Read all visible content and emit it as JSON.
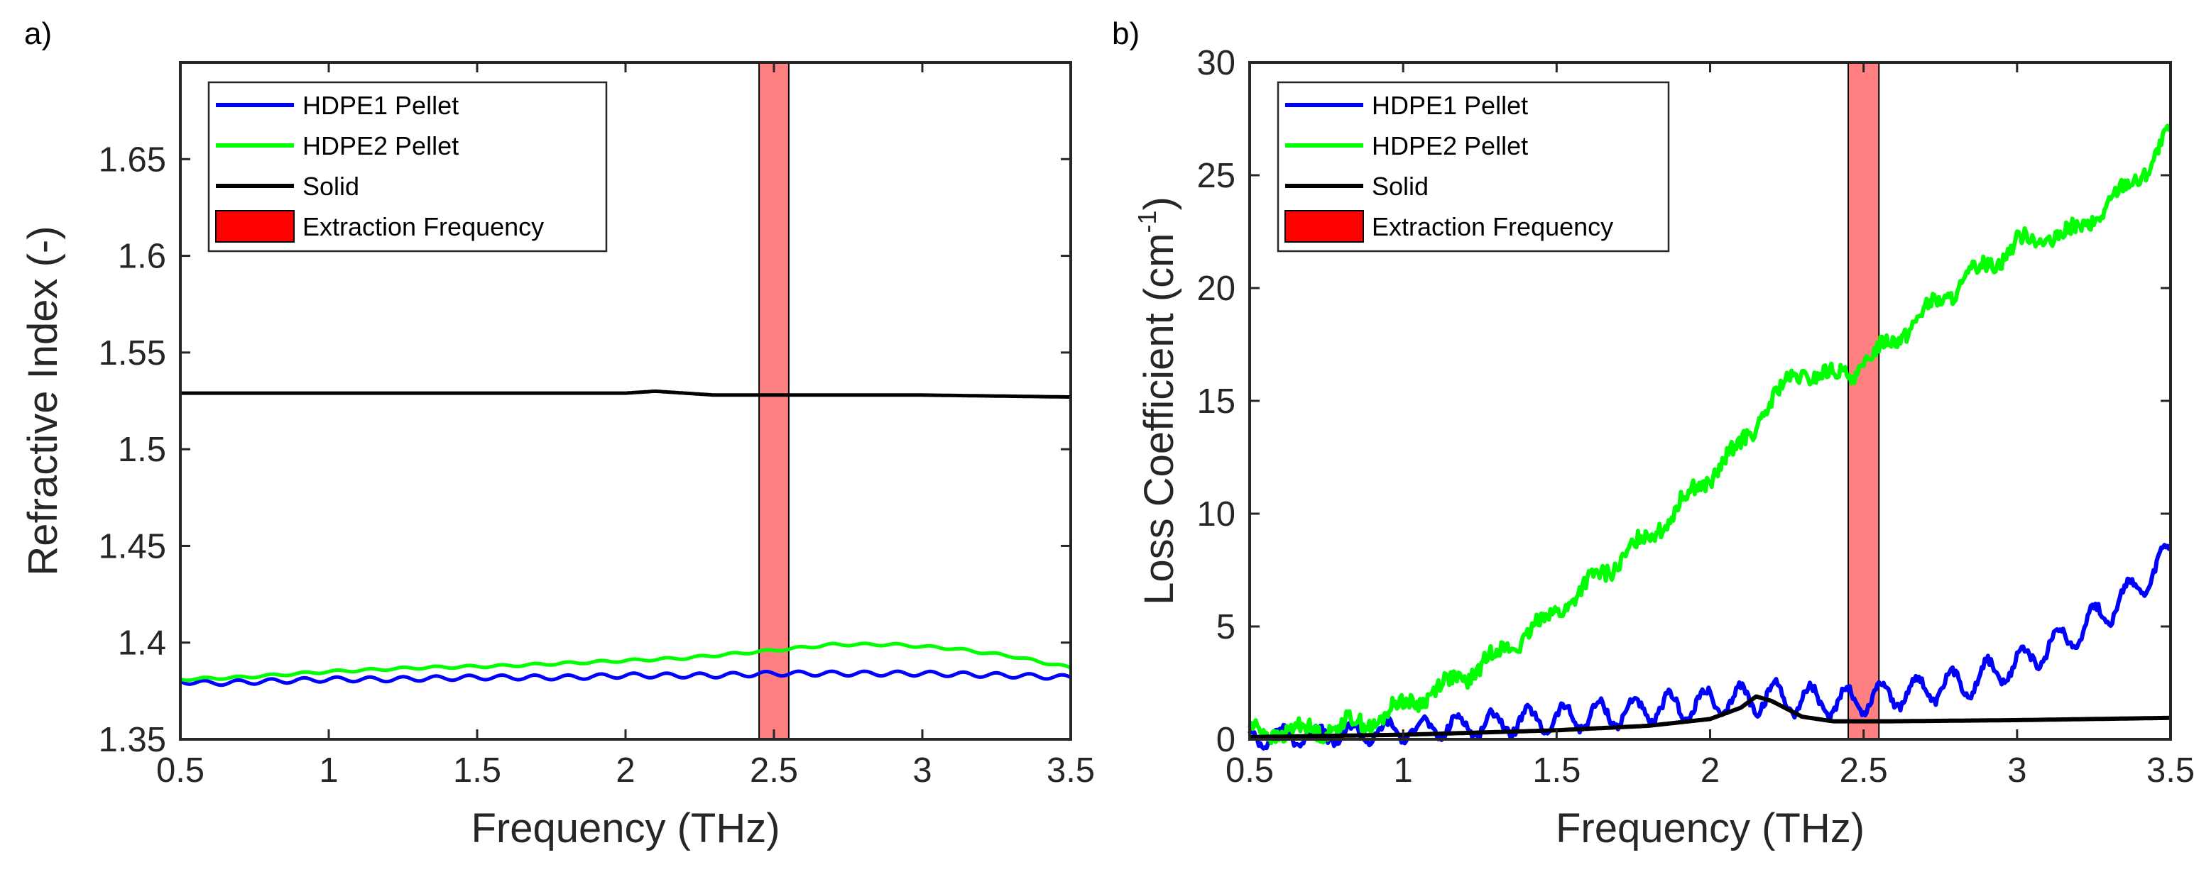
{
  "chart_data": [
    {
      "panel_label": "a)",
      "type": "line",
      "xlabel": "Frequency (THz)",
      "ylabel": "Refractive Index (-)",
      "xlim": [
        0.5,
        3.5
      ],
      "ylim": [
        1.35,
        1.7
      ],
      "xticks": [
        0.5,
        1,
        1.5,
        2,
        2.5,
        3,
        3.5
      ],
      "xtick_labels": [
        "0.5",
        "1",
        "1.5",
        "2",
        "2.5",
        "3",
        "3.5"
      ],
      "yticks": [
        1.35,
        1.4,
        1.45,
        1.5,
        1.55,
        1.6,
        1.65
      ],
      "ytick_labels": [
        "1.35",
        "1.4",
        "1.45",
        "1.5",
        "1.55",
        "1.6",
        "1.65"
      ],
      "band": [
        2.45,
        2.55
      ],
      "legend_position": "top-left",
      "legend": [
        "HDPE1 Pellet",
        "HDPE2 Pellet",
        "Solid",
        "Extraction Frequency"
      ],
      "series": [
        {
          "name": "HDPE1 Pellet",
          "color": "#0000ff",
          "x": [
            0.5,
            0.6,
            0.8,
            1.0,
            1.2,
            1.5,
            1.8,
            2.0,
            2.3,
            2.5,
            2.8,
            3.0,
            3.3,
            3.5
          ],
          "y": [
            1.38,
            1.379,
            1.38,
            1.381,
            1.381,
            1.382,
            1.382,
            1.383,
            1.383,
            1.384,
            1.384,
            1.384,
            1.383,
            1.382
          ],
          "ripple": 0.0012
        },
        {
          "name": "HDPE2 Pellet",
          "color": "#00ff00",
          "x": [
            0.5,
            0.7,
            1.0,
            1.3,
            1.6,
            1.9,
            2.2,
            2.5,
            2.7,
            2.9,
            3.1,
            3.3,
            3.5
          ],
          "y": [
            1.381,
            1.382,
            1.385,
            1.387,
            1.388,
            1.39,
            1.392,
            1.396,
            1.399,
            1.399,
            1.397,
            1.393,
            1.387
          ],
          "ripple": 0.0006
        },
        {
          "name": "Solid",
          "color": "#000000",
          "x": [
            0.5,
            1.0,
            1.5,
            2.0,
            2.1,
            2.2,
            2.3,
            2.5,
            3.0,
            3.5
          ],
          "y": [
            1.529,
            1.529,
            1.529,
            1.529,
            1.53,
            1.529,
            1.528,
            1.528,
            1.528,
            1.527
          ],
          "ripple": 0
        }
      ]
    },
    {
      "panel_label": "b)",
      "type": "line",
      "xlabel": "Frequency (THz)",
      "ylabel": "Loss Coefficient  (cm",
      "ylabel_sup": "-1",
      "ylabel_end": ")",
      "xlim": [
        0.5,
        3.5
      ],
      "ylim": [
        0,
        30
      ],
      "xticks": [
        0.5,
        1,
        1.5,
        2,
        2.5,
        3,
        3.5
      ],
      "xtick_labels": [
        "0.5",
        "1",
        "1.5",
        "2",
        "2.5",
        "3",
        "3.5"
      ],
      "yticks": [
        0,
        5,
        10,
        15,
        20,
        25,
        30
      ],
      "ytick_labels": [
        "0",
        "5",
        "10",
        "15",
        "20",
        "25",
        "30"
      ],
      "band": [
        2.45,
        2.55
      ],
      "legend_position": "top-left",
      "legend": [
        "HDPE1 Pellet",
        "HDPE2 Pellet",
        "Solid",
        "Extraction Frequency"
      ],
      "series": [
        {
          "name": "HDPE1 Pellet",
          "color": "#0000ff",
          "x": [
            0.5,
            0.8,
            1.0,
            1.2,
            1.5,
            1.8,
            2.0,
            2.2,
            2.4,
            2.6,
            2.8,
            3.0,
            3.2,
            3.4,
            3.5
          ],
          "y": [
            0.1,
            0.2,
            0.4,
            0.6,
            0.9,
            1.3,
            1.6,
            1.9,
            1.6,
            2.0,
            2.4,
            3.3,
            4.8,
            6.8,
            8.2
          ],
          "ripple": 0.65
        },
        {
          "name": "HDPE2 Pellet",
          "color": "#00ff00",
          "x": [
            0.5,
            0.7,
            0.9,
            1.0,
            1.2,
            1.4,
            1.6,
            1.8,
            2.0,
            2.1,
            2.2,
            2.3,
            2.4,
            2.5,
            2.6,
            2.8,
            3.0,
            3.2,
            3.4,
            3.5
          ],
          "y": [
            0.3,
            0.4,
            0.8,
            1.5,
            2.8,
            4.6,
            6.8,
            9.0,
            11.7,
            13.0,
            15.0,
            16.3,
            16.0,
            16.6,
            17.8,
            20.0,
            22.0,
            22.5,
            25.0,
            26.8
          ],
          "ripple": 0.35
        },
        {
          "name": "Solid",
          "color": "#000000",
          "x": [
            0.5,
            1.0,
            1.5,
            1.8,
            2.0,
            2.1,
            2.15,
            2.2,
            2.3,
            2.4,
            2.6,
            3.0,
            3.5
          ],
          "y": [
            0.1,
            0.2,
            0.4,
            0.6,
            0.9,
            1.4,
            1.9,
            1.7,
            1.0,
            0.8,
            0.8,
            0.85,
            0.95
          ],
          "ripple": 0
        }
      ]
    }
  ]
}
